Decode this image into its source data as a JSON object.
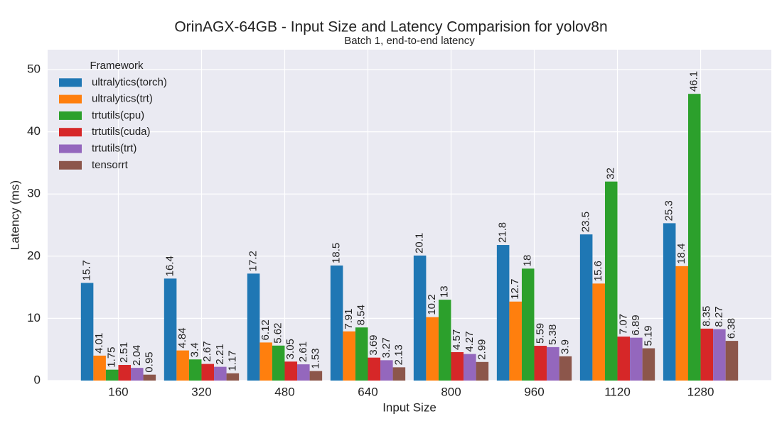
{
  "chart_data": {
    "type": "bar",
    "title": "OrinAGX-64GB - Input Size and Latency Comparision for yolov8n",
    "subtitle": "Batch 1, end-to-end latency",
    "x_label": "Input Size",
    "y_label": "Latency (ms)",
    "categories": [
      "160",
      "320",
      "480",
      "640",
      "800",
      "960",
      "1120",
      "1280"
    ],
    "legend_title": "Framework",
    "legend_position": "upper left",
    "grid": true,
    "ylim": [
      0,
      53.2
    ],
    "yticks": [
      0,
      10,
      20,
      30,
      40,
      50
    ],
    "series": [
      {
        "name": "ultralytics(torch)",
        "color": "#1f77b4",
        "values": [
          15.7,
          16.4,
          17.2,
          18.5,
          20.1,
          21.8,
          23.5,
          25.3
        ]
      },
      {
        "name": "ultralytics(trt)",
        "color": "#ff7f0e",
        "values": [
          4.01,
          4.84,
          6.12,
          7.91,
          10.2,
          12.7,
          15.6,
          18.4
        ]
      },
      {
        "name": "trtutils(cpu)",
        "color": "#2ca02c",
        "values": [
          1.75,
          3.4,
          5.62,
          8.54,
          13,
          18,
          32,
          46.1
        ]
      },
      {
        "name": "trtutils(cuda)",
        "color": "#d62728",
        "values": [
          2.51,
          2.67,
          3.05,
          3.69,
          4.57,
          5.59,
          7.07,
          8.35
        ]
      },
      {
        "name": "trtutils(trt)",
        "color": "#9467bd",
        "values": [
          2.04,
          2.21,
          2.61,
          3.27,
          4.27,
          5.38,
          6.89,
          8.27
        ]
      },
      {
        "name": "tensorrt",
        "color": "#8c564b",
        "values": [
          0.95,
          1.17,
          1.53,
          2.13,
          2.99,
          3.9,
          5.19,
          6.38
        ]
      }
    ]
  }
}
